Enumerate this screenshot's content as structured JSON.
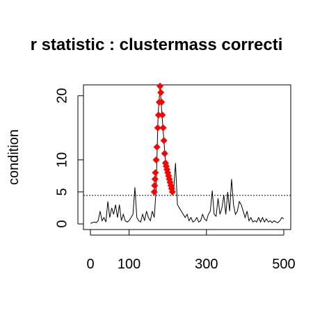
{
  "chart_data": {
    "type": "line",
    "title": "r statistic : clustermass correcti",
    "y_label": "condition",
    "xlim": [
      -18,
      518
    ],
    "ylim": [
      -0.87,
      21.7
    ],
    "xticks": [
      0,
      100,
      300,
      500
    ],
    "yticks": [
      0,
      5,
      10,
      20
    ],
    "threshold": 4.46,
    "x": [
      0,
      5,
      10,
      15,
      20,
      25,
      30,
      35,
      40,
      45,
      50,
      55,
      60,
      65,
      70,
      75,
      80,
      85,
      90,
      95,
      100,
      105,
      110,
      115,
      120,
      125,
      130,
      135,
      140,
      145,
      150,
      155,
      160,
      165,
      170,
      175,
      180,
      185,
      190,
      195,
      200,
      205,
      210,
      215,
      220,
      225,
      230,
      235,
      240,
      245,
      250,
      255,
      260,
      265,
      270,
      275,
      280,
      285,
      290,
      295,
      300,
      305,
      310,
      315,
      320,
      325,
      330,
      335,
      340,
      345,
      350,
      355,
      360,
      365,
      370,
      375,
      380,
      385,
      390,
      395,
      400,
      405,
      410,
      415,
      420,
      425,
      430,
      435,
      440,
      445,
      450,
      455,
      460,
      465,
      470,
      475,
      480,
      485,
      490,
      495,
      500
    ],
    "series": [
      {
        "color": "#000000",
        "values": [
          0.1,
          0.2,
          0.3,
          0.2,
          0.5,
          2,
          0.5,
          1,
          0.3,
          3.5,
          1,
          2.5,
          1.5,
          3,
          1,
          3,
          0.5,
          1.5,
          0.5,
          0.3,
          0.5,
          1,
          1.5,
          5.7,
          1,
          0.5,
          0.3,
          1.5,
          0.5,
          2,
          1,
          0.5,
          2,
          1,
          5.5,
          17,
          21.5,
          17,
          13,
          9,
          8,
          7,
          5.5,
          5,
          9.5,
          3,
          2.5,
          2,
          1.5,
          1,
          1.5,
          0.5,
          1,
          0.3,
          0.5,
          1,
          0.3,
          0.5,
          1.5,
          0.8,
          0.5,
          1.5,
          2,
          5.2,
          1.5,
          1.2,
          4,
          1.5,
          2.5,
          4.5,
          1.5,
          5,
          2,
          7,
          3,
          1.5,
          2,
          3.5,
          3,
          2,
          1,
          2,
          0.5,
          1,
          0.3,
          0.5,
          0.3,
          1,
          0.3,
          1,
          0.3,
          0.8,
          0.3,
          0.5,
          0.2,
          0.5,
          0.3,
          0.2,
          0.5,
          1,
          0.8
        ]
      },
      {
        "color": "#ff0000",
        "marker": "diamond",
        "x": [
          165,
          166,
          167,
          168,
          170,
          172,
          174,
          176,
          178,
          180,
          182,
          184,
          186,
          188,
          190,
          192,
          194,
          196,
          198,
          200,
          202,
          204,
          206,
          208,
          210,
          212
        ],
        "values": [
          5,
          6,
          7,
          8,
          10,
          12,
          15,
          17,
          19,
          21.5,
          20.5,
          19,
          17,
          15,
          13,
          11,
          9.5,
          9,
          8.5,
          8,
          7.5,
          7,
          6.5,
          6,
          5.5,
          5
        ]
      }
    ]
  }
}
